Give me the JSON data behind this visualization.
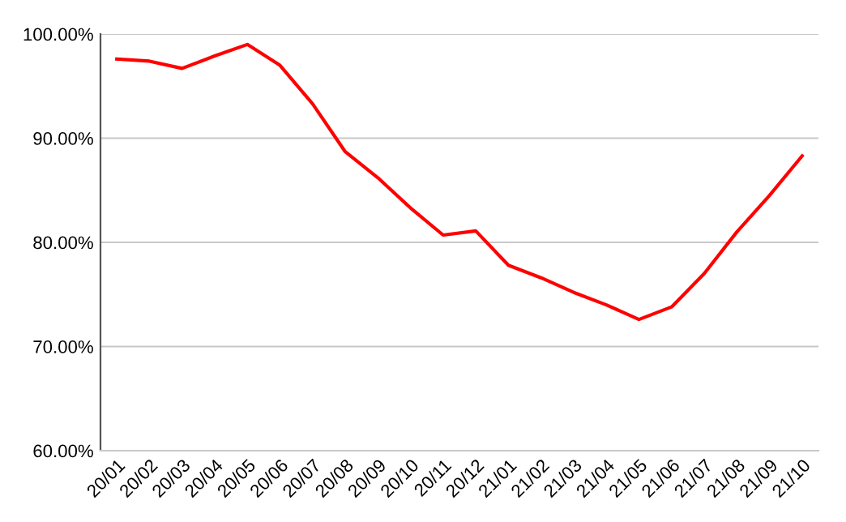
{
  "chart_data": {
    "type": "line",
    "categories": [
      "20/01",
      "20/02",
      "20/03",
      "20/04",
      "20/05",
      "20/06",
      "20/07",
      "20/08",
      "20/09",
      "20/10",
      "20/11",
      "20/12",
      "21/01",
      "21/02",
      "21/03",
      "21/04",
      "21/05",
      "21/06",
      "21/07",
      "21/08",
      "21/09",
      "21/10"
    ],
    "series": [
      {
        "color": "#ff0000",
        "values": [
          97.6,
          97.4,
          96.7,
          97.9,
          99.0,
          97.0,
          93.3,
          88.7,
          86.2,
          83.3,
          80.7,
          81.1,
          77.8,
          76.6,
          75.2,
          74.0,
          72.6,
          73.8,
          77.0,
          81.0,
          84.5,
          88.3
        ]
      }
    ],
    "ylim": [
      60,
      100
    ],
    "yticks": [
      {
        "value": 60,
        "label": "60.00%"
      },
      {
        "value": 70,
        "label": "70.00%"
      },
      {
        "value": 80,
        "label": "80.00%"
      },
      {
        "value": 90,
        "label": "90.00%"
      },
      {
        "value": 100,
        "label": "100.00%"
      }
    ],
    "grid": "y",
    "legend": false
  }
}
